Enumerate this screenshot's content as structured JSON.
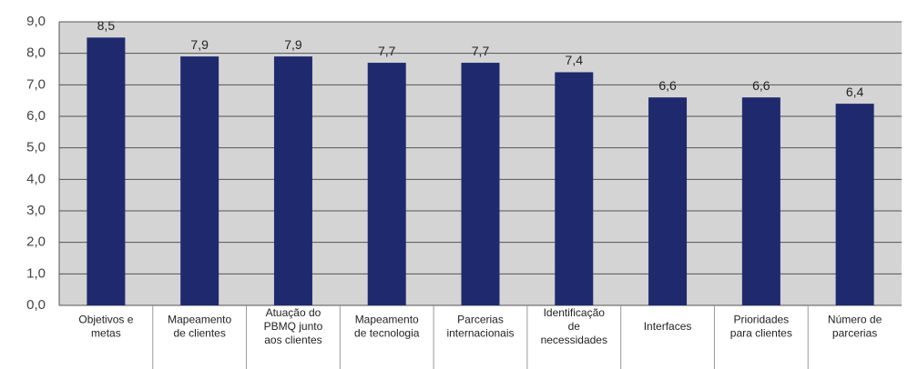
{
  "chart_data": {
    "type": "bar",
    "categories": [
      "Objetivos e\nmetas",
      "Mapeamento\nde clientes",
      "Atuação do\nPBMQ junto\naos clientes",
      "Mapeamento\nde tecnologia",
      "Parcerias\ninternacionais",
      "Identificação\nde\nnecessidades",
      "Interfaces",
      "Prioridades\npara clientes",
      "Número de\nparcerias"
    ],
    "values": [
      8.5,
      7.9,
      7.9,
      7.7,
      7.7,
      7.4,
      6.6,
      6.6,
      6.4
    ],
    "value_labels": [
      "8,5",
      "7,9",
      "7,9",
      "7,7",
      "7,7",
      "7,4",
      "6,6",
      "6,6",
      "6,4"
    ],
    "color": "#1f2a6e",
    "ylim": [
      0,
      9
    ],
    "yticks": [
      {
        "value": 0,
        "label": "0,0"
      },
      {
        "value": 1,
        "label": "1,0"
      },
      {
        "value": 2,
        "label": "2,0"
      },
      {
        "value": 3,
        "label": "3,0"
      },
      {
        "value": 4,
        "label": "4,0"
      },
      {
        "value": 5,
        "label": "5,0"
      },
      {
        "value": 6,
        "label": "6,0"
      },
      {
        "value": 7,
        "label": "7,0"
      },
      {
        "value": 8,
        "label": "8,0"
      },
      {
        "value": 9,
        "label": "9,0"
      }
    ],
    "grid": true
  }
}
